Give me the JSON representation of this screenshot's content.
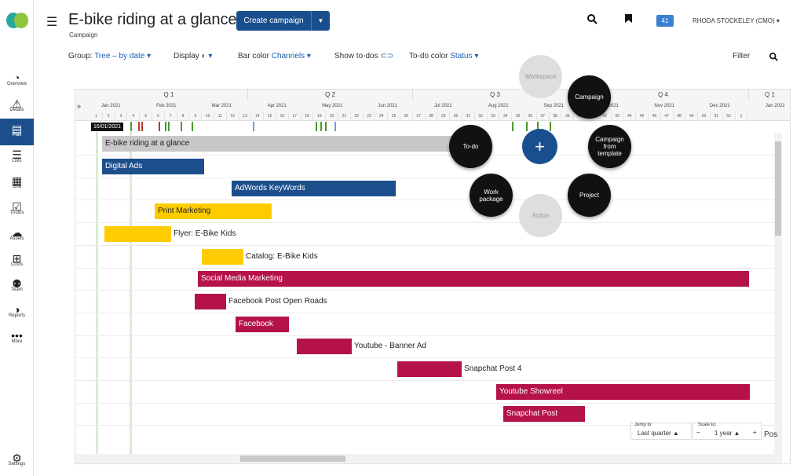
{
  "nav": [
    {
      "label": "Overview",
      "icon": "overview-icon",
      "glyph": "◔"
    },
    {
      "label": "Details",
      "icon": "warning-icon",
      "glyph": "⚠"
    },
    {
      "label": "Plan",
      "icon": "plan-icon",
      "glyph": "▤"
    },
    {
      "label": "Lists",
      "icon": "lists-icon",
      "glyph": "☰"
    },
    {
      "label": "Grid",
      "icon": "grid-icon",
      "glyph": "▦"
    },
    {
      "label": "To-dos",
      "icon": "todo-icon",
      "glyph": "☑"
    },
    {
      "label": "Assets",
      "icon": "cloud-icon",
      "glyph": "☁"
    },
    {
      "label": "Costs",
      "icon": "costs-icon",
      "glyph": "⊞"
    },
    {
      "label": "Team",
      "icon": "team-icon",
      "glyph": "⚉"
    },
    {
      "label": "Reports",
      "icon": "reports-icon",
      "glyph": "◑"
    },
    {
      "label": "More",
      "icon": "more-icon",
      "glyph": "•••"
    }
  ],
  "settings": {
    "label": "Settings",
    "glyph": "⚙"
  },
  "header": {
    "title": "E-bike riding at a glance",
    "subtitle": "Campaign",
    "create_label": "Create campaign",
    "badge": "41",
    "user": "RHODA STOCKELEY (CMO) ▾"
  },
  "toolbar": {
    "group_label": "Group:",
    "group_value": "Tree – by date ▾",
    "display_label": "Display",
    "display_value": "◐ ▾",
    "barcolor_label": "Bar color",
    "barcolor_value": "Channels ▾",
    "showtodos_label": "Show to-dos",
    "showtodos_value": "⊂⊃",
    "todocolor_label": "To-do color",
    "todocolor_value": "Status ▾",
    "filter_label": "Filter"
  },
  "timeline": {
    "quarters": [
      "Q 1",
      "Q 2",
      "Q 3",
      "Q 4",
      "Q 1"
    ],
    "months": [
      "Jan 2021",
      "Feb 2021",
      "Mar 2021",
      "Apr 2021",
      "May 2021",
      "Jun 2021",
      "Jul 2021",
      "Aug 2021",
      "Sep 2021",
      "Oct 2021",
      "Nov 2021",
      "Dec 2021",
      "Jan 2022"
    ],
    "weeks": [
      "1",
      "2",
      "3",
      "4",
      "5",
      "6",
      "7",
      "8",
      "9",
      "10",
      "11",
      "12",
      "13",
      "14",
      "15",
      "16",
      "17",
      "18",
      "19",
      "20",
      "21",
      "22",
      "23",
      "24",
      "25",
      "26",
      "27",
      "28",
      "29",
      "30",
      "31",
      "32",
      "33",
      "34",
      "35",
      "36",
      "37",
      "38",
      "39",
      "40",
      "41",
      "42",
      "43",
      "44",
      "45",
      "46",
      "47",
      "48",
      "49",
      "50",
      "51",
      "52",
      "1"
    ],
    "date_tag": "16/01/2021"
  },
  "rows": [
    {
      "label": "E-bike riding at a glance",
      "color": "#c8c8c8",
      "text_color": "#222",
      "inside": true
    },
    {
      "label": "Digital Ads",
      "color": "#1c4e8c",
      "inside": true
    },
    {
      "label": "AdWords KeyWords",
      "color": "#1c4e8c",
      "inside": true
    },
    {
      "label": "Print Marketing",
      "color": "#ffcc00",
      "text_color": "#222",
      "inside": true
    },
    {
      "label": "Flyer: E-Bike Kids",
      "color": "#ffcc00",
      "inside": false
    },
    {
      "label": "Catalog: E-Bike Kids",
      "color": "#ffcc00",
      "inside": false
    },
    {
      "label": "Social Media Marketing",
      "color": "#b5124a",
      "inside": true
    },
    {
      "label": "Facebook Post Open Roads",
      "color": "#b5124a",
      "inside": false
    },
    {
      "label": "Facebook",
      "color": "#b5124a",
      "inside": true
    },
    {
      "label": "Youtube - Banner Ad",
      "color": "#b5124a",
      "inside": false
    },
    {
      "label": "Snapchat Post 4",
      "color": "#b5124a",
      "inside": false
    },
    {
      "label": "Youtube Showreel",
      "color": "#b5124a",
      "inside": true
    },
    {
      "label": "Snapchat Post",
      "color": "#b5124a",
      "inside": true
    }
  ],
  "controls": {
    "jump_label": "Jump to:",
    "jump_value": "Last quarter ▲",
    "scale_label": "Scale to:",
    "scale_value": "1 year ▲",
    "minus": "−",
    "plus": "+",
    "partial": "Pos"
  },
  "radial": {
    "workspace": "Workspace",
    "campaign": "Campaign",
    "todo": "To-do",
    "template": "Campaign from template",
    "workpackage": "Work package",
    "project": "Project",
    "action": "Action",
    "plus": "+"
  }
}
